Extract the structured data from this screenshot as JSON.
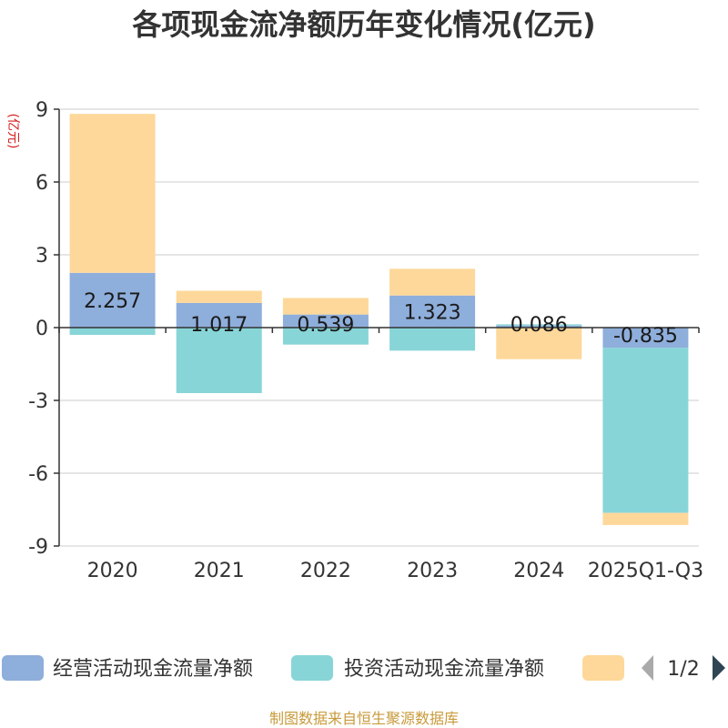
{
  "chart_data": {
    "type": "bar",
    "stacked": true,
    "title": "各项现金流净额历年变化情况(亿元)",
    "ylabel": "(亿元)",
    "xlabel": "",
    "categories": [
      "2020",
      "2021",
      "2022",
      "2023",
      "2024",
      "2025Q1-Q3"
    ],
    "ylim": [
      -9,
      9
    ],
    "yticks": [
      9,
      6,
      3,
      0,
      -3,
      -6,
      -9
    ],
    "grid": true,
    "series": [
      {
        "name": "经营活动现金流量净额",
        "color": "#8eaedb",
        "values": [
          2.257,
          1.017,
          0.539,
          1.323,
          0.086,
          -0.835
        ],
        "labels": [
          "2.257",
          "1.017",
          "0.539",
          "1.323",
          "0.086",
          "-0.835"
        ]
      },
      {
        "name": "投资活动现金流量净额",
        "color": "#88d5d8",
        "values": [
          -0.3,
          -2.7,
          -0.7,
          -0.95,
          0.05,
          -6.8
        ]
      },
      {
        "name": "",
        "color": "#fdd89a",
        "values": [
          6.55,
          0.5,
          0.68,
          1.1,
          -1.3,
          -0.5
        ]
      }
    ],
    "legend": {
      "page": "1/2",
      "position": "bottom"
    }
  },
  "source": "制图数据来自恒生聚源数据库"
}
